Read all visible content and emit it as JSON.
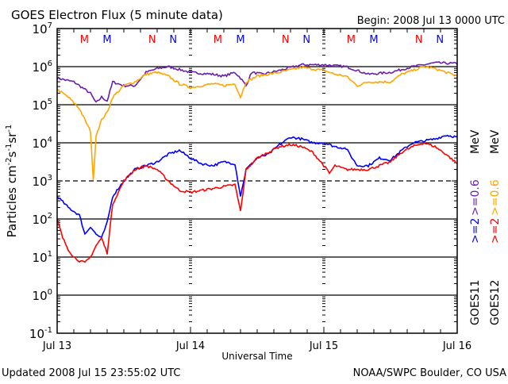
{
  "header": {
    "title": "GOES Electron Flux (5 minute data)",
    "begin": "Begin: 2008 Jul 13 0000 UTC"
  },
  "footer": {
    "updated": "Updated 2008 Jul 15 23:55:02 UTC",
    "credit": "NOAA/SWPC Boulder, CO USA"
  },
  "colors": {
    "goes11_2": "#0000ff",
    "goes11_06": "#6a1fb0",
    "goes12_2": "#ff0000",
    "goes12_06": "#ffa500"
  },
  "legend": {
    "col1": {
      "sat": "GOES11",
      "e2": ">=2",
      "e06": ">=0.6",
      "unit": "MeV"
    },
    "col2": {
      "sat": "GOES12",
      "e2": ">=2",
      "e06": ">=0.6",
      "unit": "MeV"
    }
  },
  "chart_data": {
    "type": "line",
    "title": "GOES Electron Flux (5 minute data)",
    "xlabel": "Universal Time",
    "ylabel": "Particles cm^-2 s^-1 sr^-1",
    "yscale": "log",
    "ylim_log10": [
      -1,
      7
    ],
    "xlim_hours": [
      0,
      72
    ],
    "x_ticks": [
      {
        "hour": 0,
        "label": "Jul 13"
      },
      {
        "hour": 24,
        "label": "Jul 14"
      },
      {
        "hour": 48,
        "label": "Jul 15"
      },
      {
        "hour": 72,
        "label": "Jul 16"
      }
    ],
    "y_ticks": [
      {
        "exp": 7,
        "label": "10^7"
      },
      {
        "exp": 6,
        "label": "10^6"
      },
      {
        "exp": 5,
        "label": "10^5"
      },
      {
        "exp": 4,
        "label": "10^4"
      },
      {
        "exp": 3,
        "label": "10^3"
      },
      {
        "exp": 2,
        "label": "10^2"
      },
      {
        "exp": 1,
        "label": "10^1"
      },
      {
        "exp": 0,
        "label": "10^0"
      },
      {
        "exp": -1,
        "label": "10^-1"
      }
    ],
    "threshold_dashed_log10": 3,
    "markers": [
      {
        "hour": 4.9,
        "label": "M",
        "color": "#ff0000"
      },
      {
        "hour": 9.0,
        "label": "M",
        "color": "#0000ff"
      },
      {
        "hour": 17.1,
        "label": "N",
        "color": "#ff0000"
      },
      {
        "hour": 20.9,
        "label": "N",
        "color": "#0000ff"
      },
      {
        "hour": 28.9,
        "label": "M",
        "color": "#ff0000"
      },
      {
        "hour": 33.0,
        "label": "M",
        "color": "#0000ff"
      },
      {
        "hour": 41.1,
        "label": "N",
        "color": "#ff0000"
      },
      {
        "hour": 44.9,
        "label": "N",
        "color": "#0000ff"
      },
      {
        "hour": 52.9,
        "label": "M",
        "color": "#ff0000"
      },
      {
        "hour": 57.0,
        "label": "M",
        "color": "#0000ff"
      },
      {
        "hour": 65.1,
        "label": "N",
        "color": "#ff0000"
      },
      {
        "hour": 68.9,
        "label": "N",
        "color": "#0000ff"
      }
    ],
    "series": [
      {
        "name": "GOES11 >=0.6 MeV",
        "color": "#6a1fb0",
        "hours": [
          0,
          3,
          6,
          7,
          8,
          9,
          10,
          12,
          14,
          16,
          18,
          20,
          24,
          28,
          30,
          32,
          33,
          34,
          35,
          37,
          40,
          44,
          48,
          52,
          56,
          60,
          64,
          68,
          72
        ],
        "log10_values": [
          5.7,
          5.6,
          5.3,
          5.05,
          5.2,
          5.1,
          5.6,
          5.5,
          5.5,
          5.85,
          5.95,
          6.0,
          5.85,
          5.8,
          5.75,
          5.85,
          5.7,
          5.5,
          5.85,
          5.8,
          5.9,
          6.05,
          6.05,
          6.0,
          5.8,
          5.85,
          6.0,
          6.1,
          6.08
        ]
      },
      {
        "name": "GOES12 >=0.6 MeV",
        "color": "#ffa500",
        "hours": [
          0,
          2,
          4,
          5,
          6,
          6.5,
          7,
          8,
          9,
          10,
          12,
          14,
          16,
          18,
          20,
          22,
          24,
          28,
          30,
          32,
          33,
          34,
          36,
          40,
          44,
          48,
          50,
          52,
          54,
          56,
          60,
          62,
          66,
          68,
          72
        ],
        "log10_values": [
          5.4,
          5.2,
          4.9,
          4.6,
          4.3,
          3.0,
          4.2,
          4.6,
          4.8,
          5.2,
          5.5,
          5.6,
          5.8,
          5.85,
          5.75,
          5.55,
          5.45,
          5.55,
          5.5,
          5.55,
          5.2,
          5.6,
          5.75,
          5.85,
          5.98,
          5.9,
          5.8,
          5.75,
          5.5,
          5.6,
          5.6,
          5.8,
          6.0,
          5.95,
          5.75
        ]
      },
      {
        "name": "GOES11 >=2 MeV",
        "color": "#0000ff",
        "hours": [
          0,
          2,
          4,
          5,
          6,
          7,
          8,
          9,
          10,
          12,
          14,
          16,
          18,
          20,
          22,
          24,
          26,
          28,
          30,
          32,
          33,
          34,
          36,
          38,
          40,
          42,
          44,
          46,
          48,
          50,
          52,
          54,
          56,
          58,
          60,
          62,
          64,
          66,
          68,
          70,
          72
        ],
        "log10_values": [
          2.6,
          2.3,
          2.1,
          1.6,
          1.8,
          1.6,
          1.5,
          1.9,
          2.6,
          3.0,
          3.3,
          3.4,
          3.5,
          3.7,
          3.8,
          3.6,
          3.45,
          3.4,
          3.5,
          3.45,
          2.6,
          3.3,
          3.6,
          3.7,
          3.95,
          4.15,
          4.1,
          4.0,
          4.0,
          3.9,
          3.85,
          3.4,
          3.4,
          3.6,
          3.55,
          3.8,
          4.0,
          4.05,
          4.1,
          4.2,
          4.15
        ]
      },
      {
        "name": "GOES12 >=2 MeV",
        "color": "#ff0000",
        "hours": [
          0,
          1,
          2,
          3,
          4,
          5,
          6,
          7,
          8,
          9,
          10,
          12,
          14,
          16,
          18,
          20,
          22,
          24,
          26,
          28,
          30,
          32,
          33,
          34,
          36,
          38,
          40,
          42,
          44,
          46,
          48,
          49,
          50,
          52,
          54,
          56,
          58,
          60,
          62,
          64,
          66,
          68,
          70,
          72
        ],
        "log10_values": [
          2.0,
          1.5,
          1.2,
          1.0,
          0.9,
          0.85,
          1.0,
          1.3,
          1.5,
          1.1,
          2.4,
          3.0,
          3.3,
          3.4,
          3.3,
          3.0,
          2.75,
          2.7,
          2.75,
          2.8,
          2.85,
          2.9,
          2.2,
          3.3,
          3.6,
          3.75,
          3.9,
          3.95,
          3.9,
          3.75,
          3.4,
          3.2,
          3.4,
          3.3,
          3.3,
          3.3,
          3.4,
          3.5,
          3.75,
          3.9,
          4.0,
          3.9,
          3.7,
          3.45
        ]
      }
    ]
  }
}
